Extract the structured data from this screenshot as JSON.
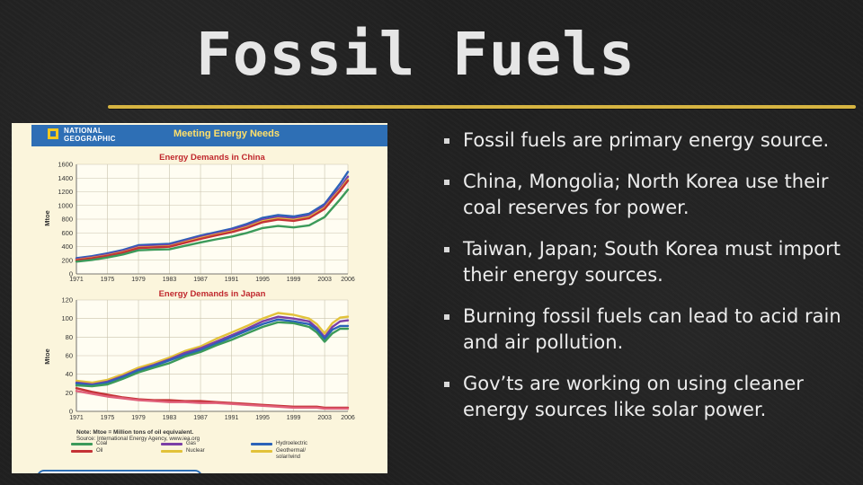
{
  "slide": {
    "title": "Fossil Fuels",
    "accent_color": "#d6b441",
    "bullets": [
      "Fossil fuels are primary energy source.",
      "China, Mongolia; North Korea use their coal reserves for power.",
      "Taiwan, Japan; South Korea must import their energy sources.",
      "Burning fossil fuels can lead to acid rain and air pollution.",
      "Gov’ts are working on using cleaner energy sources like solar power."
    ]
  },
  "figure": {
    "publisher": "NATIONAL GEOGRAPHIC",
    "title": "Meeting Energy Needs",
    "header_color": "#2e6fb5",
    "note": "Note: Mtoe = Million tons of oil equivalent.",
    "source": "Source: International Energy Agency, www.iea.org"
  },
  "chart_data": [
    {
      "type": "line",
      "title": "Energy Demands in China",
      "ylabel": "Mtoe",
      "ylim": [
        0,
        1600
      ],
      "yticks": [
        "0",
        "200",
        "400",
        "600",
        "800",
        "1000",
        "1200",
        "1400",
        "1600"
      ],
      "xticks": [
        "1971",
        "1975",
        "1979",
        "1983",
        "1987",
        "1991",
        "1995",
        "1999",
        "2003",
        "2006"
      ],
      "x": [
        1971,
        1973,
        1975,
        1977,
        1979,
        1981,
        1983,
        1985,
        1987,
        1989,
        1991,
        1993,
        1995,
        1997,
        1999,
        2001,
        2003,
        2004,
        2005,
        2006
      ],
      "grid": true,
      "series": [
        {
          "color": "#2b62b8",
          "values": [
            230,
            260,
            300,
            350,
            420,
            430,
            440,
            500,
            560,
            610,
            660,
            730,
            820,
            860,
            840,
            880,
            1020,
            1170,
            1320,
            1490
          ]
        },
        {
          "color": "#7b3fa6",
          "values": [
            215,
            245,
            285,
            335,
            400,
            410,
            420,
            480,
            540,
            590,
            640,
            705,
            790,
            830,
            810,
            850,
            990,
            1130,
            1260,
            1420
          ]
        },
        {
          "color": "#e2c23a",
          "values": [
            205,
            235,
            270,
            320,
            385,
            395,
            405,
            465,
            525,
            575,
            620,
            685,
            770,
            810,
            790,
            830,
            965,
            1100,
            1230,
            1380
          ]
        },
        {
          "color": "#c43236",
          "values": [
            200,
            228,
            265,
            312,
            378,
            388,
            398,
            455,
            512,
            562,
            610,
            672,
            755,
            795,
            775,
            815,
            950,
            1085,
            1215,
            1360
          ]
        },
        {
          "color": "#3c9a5a",
          "values": [
            180,
            205,
            240,
            285,
            345,
            355,
            360,
            410,
            460,
            505,
            545,
            600,
            670,
            700,
            680,
            710,
            830,
            960,
            1090,
            1230
          ]
        }
      ]
    },
    {
      "type": "line",
      "title": "Energy Demands in Japan",
      "ylabel": "Mtoe",
      "ylim": [
        0,
        120
      ],
      "yticks": [
        "0",
        "20",
        "40",
        "60",
        "80",
        "100",
        "120"
      ],
      "xticks": [
        "1971",
        "1975",
        "1979",
        "1983",
        "1987",
        "1991",
        "1995",
        "1999",
        "2003",
        "2006"
      ],
      "x": [
        1971,
        1973,
        1975,
        1977,
        1979,
        1981,
        1983,
        1985,
        1987,
        1989,
        1991,
        1993,
        1995,
        1997,
        1999,
        2001,
        2002,
        2003,
        2004,
        2005,
        2006
      ],
      "grid": true,
      "series": [
        {
          "color": "#e2c23a",
          "values": [
            33,
            31,
            34,
            40,
            47,
            52,
            58,
            65,
            70,
            78,
            85,
            92,
            100,
            106,
            104,
            100,
            94,
            84,
            95,
            101,
            102
          ]
        },
        {
          "color": "#7b3fa6",
          "values": [
            31,
            29,
            32,
            38,
            45,
            50,
            56,
            63,
            68,
            75,
            82,
            89,
            97,
            102,
            100,
            97,
            90,
            80,
            91,
            97,
            98
          ]
        },
        {
          "color": "#2b62b8",
          "values": [
            30,
            28,
            31,
            37,
            44,
            49,
            55,
            61,
            66,
            73,
            80,
            87,
            94,
            99,
            97,
            94,
            88,
            78,
            88,
            92,
            92
          ]
        },
        {
          "color": "#3c9a5a",
          "values": [
            28,
            27,
            29,
            35,
            42,
            47,
            52,
            59,
            64,
            71,
            77,
            84,
            91,
            96,
            95,
            91,
            85,
            75,
            84,
            89,
            89
          ]
        },
        {
          "color": "#c43236",
          "values": [
            25,
            21,
            18,
            15,
            13,
            12,
            12,
            11,
            11,
            10,
            9,
            8,
            7,
            6,
            5,
            5,
            5,
            4,
            4,
            4,
            4
          ]
        },
        {
          "color": "#e0607a",
          "values": [
            22,
            19,
            16,
            14,
            12,
            11,
            10,
            10,
            9,
            9,
            8,
            7,
            6,
            5,
            4,
            4,
            4,
            3,
            3,
            3,
            3
          ]
        }
      ]
    }
  ],
  "legend": [
    {
      "label": "Coal",
      "color": "#3c9a5a"
    },
    {
      "label": "Oil",
      "color": "#c43236"
    },
    {
      "label": "Gas",
      "color": "#7b3fa6"
    },
    {
      "label": "Nuclear",
      "color": "#e2c23a"
    },
    {
      "label": "Hydroelectric",
      "color": "#2b62b8"
    },
    {
      "label": "Geothermal/\nsolar/wind",
      "color": "#e2c23a"
    }
  ]
}
